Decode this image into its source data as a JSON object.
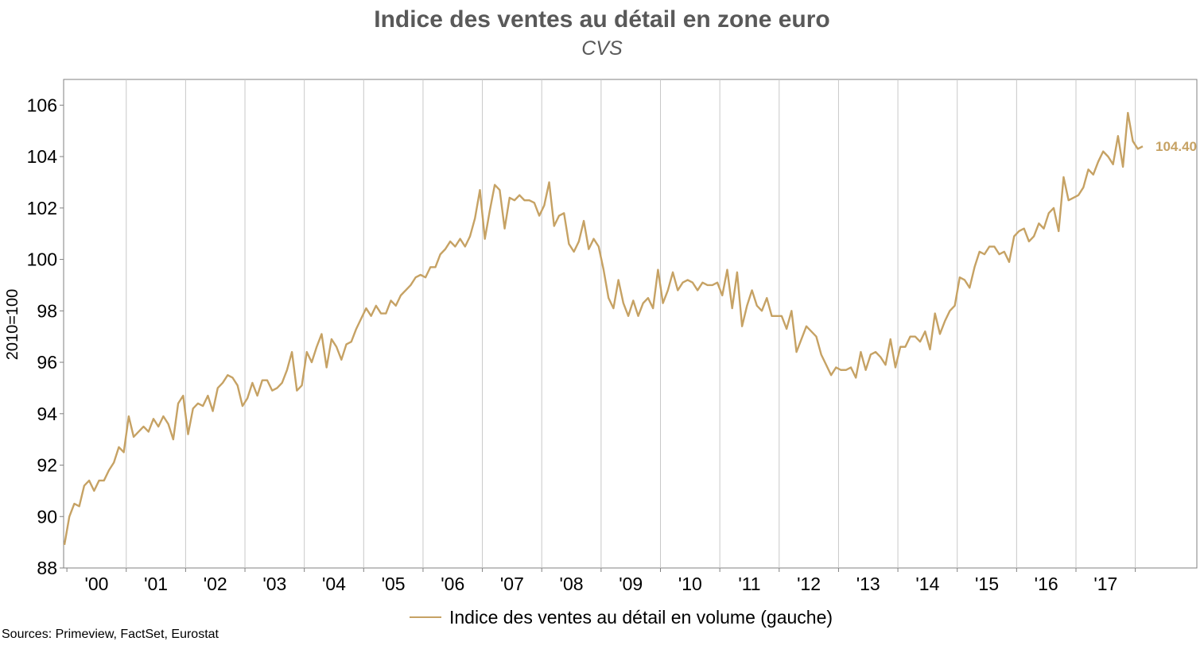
{
  "title": "Indice des ventes au détail en zone euro",
  "subtitle": "CVS",
  "source": "Sources: Primeview, FactSet, Eurostat",
  "legend": "Indice des ventes au détail en volume (gauche)",
  "last_value_label": "104.40",
  "colors": {
    "line": "#c6a264",
    "grid": "#c8c8c8",
    "axis": "#808080",
    "title": "#595959"
  },
  "chart_data": {
    "type": "line",
    "title": "Indice des ventes au détail en zone euro",
    "subtitle": "CVS",
    "xlabel": "",
    "ylabel": "2010=100",
    "ylim": [
      88,
      107
    ],
    "yticks": [
      88,
      90,
      92,
      94,
      96,
      98,
      100,
      102,
      104,
      106
    ],
    "xticks": [
      "'00",
      "'01",
      "'02",
      "'03",
      "'04",
      "'05",
      "'06",
      "'07",
      "'08",
      "'09",
      "'10",
      "'11",
      "'12",
      "'13",
      "'14",
      "'15",
      "'16",
      "'17"
    ],
    "x_start": "1999-12",
    "frequency": "monthly",
    "grid": "vertical",
    "legend_position": "bottom",
    "series": [
      {
        "name": "Indice des ventes au détail en volume (gauche)",
        "values": [
          88.9,
          90.0,
          90.5,
          90.4,
          91.2,
          91.4,
          91.0,
          91.4,
          91.4,
          91.8,
          92.1,
          92.7,
          92.5,
          93.9,
          93.1,
          93.3,
          93.5,
          93.3,
          93.8,
          93.5,
          93.9,
          93.6,
          93.0,
          94.4,
          94.7,
          93.2,
          94.2,
          94.4,
          94.3,
          94.7,
          94.1,
          95.0,
          95.2,
          95.5,
          95.4,
          95.1,
          94.3,
          94.6,
          95.2,
          94.7,
          95.3,
          95.3,
          94.9,
          95.0,
          95.2,
          95.7,
          96.4,
          94.9,
          95.1,
          96.4,
          96.0,
          96.6,
          97.1,
          95.8,
          96.9,
          96.6,
          96.1,
          96.7,
          96.8,
          97.3,
          97.7,
          98.1,
          97.8,
          98.2,
          97.9,
          97.9,
          98.4,
          98.2,
          98.6,
          98.8,
          99.0,
          99.3,
          99.4,
          99.3,
          99.7,
          99.7,
          100.2,
          100.4,
          100.7,
          100.5,
          100.8,
          100.5,
          100.9,
          101.6,
          102.7,
          100.8,
          101.9,
          102.9,
          102.7,
          101.2,
          102.4,
          102.3,
          102.5,
          102.3,
          102.3,
          102.2,
          101.7,
          102.1,
          103.0,
          101.3,
          101.7,
          101.8,
          100.6,
          100.3,
          100.7,
          101.5,
          100.4,
          100.8,
          100.5,
          99.6,
          98.5,
          98.1,
          99.2,
          98.3,
          97.8,
          98.4,
          97.8,
          98.3,
          98.5,
          98.1,
          99.6,
          98.3,
          98.8,
          99.5,
          98.8,
          99.1,
          99.2,
          99.1,
          98.8,
          99.1,
          99.0,
          99.0,
          99.1,
          98.6,
          99.6,
          98.1,
          99.5,
          97.4,
          98.2,
          98.8,
          98.2,
          98.0,
          98.5,
          97.8,
          97.8,
          97.8,
          97.3,
          98.0,
          96.4,
          96.9,
          97.4,
          97.2,
          97.0,
          96.3,
          95.9,
          95.5,
          95.8,
          95.7,
          95.7,
          95.8,
          95.4,
          96.4,
          95.7,
          96.3,
          96.4,
          96.2,
          95.9,
          96.9,
          95.8,
          96.6,
          96.6,
          97.0,
          97.0,
          96.8,
          97.2,
          96.5,
          97.9,
          97.1,
          97.6,
          98.0,
          98.2,
          99.3,
          99.2,
          98.9,
          99.7,
          100.3,
          100.2,
          100.5,
          100.5,
          100.2,
          100.3,
          99.9,
          100.9,
          101.1,
          101.2,
          100.7,
          100.9,
          101.4,
          101.2,
          101.8,
          102.0,
          101.1,
          103.2,
          102.3,
          102.4,
          102.5,
          102.8,
          103.5,
          103.3,
          103.8,
          104.2,
          104.0,
          103.7,
          104.8,
          103.6,
          105.7,
          104.6,
          104.3,
          104.4
        ]
      }
    ]
  }
}
